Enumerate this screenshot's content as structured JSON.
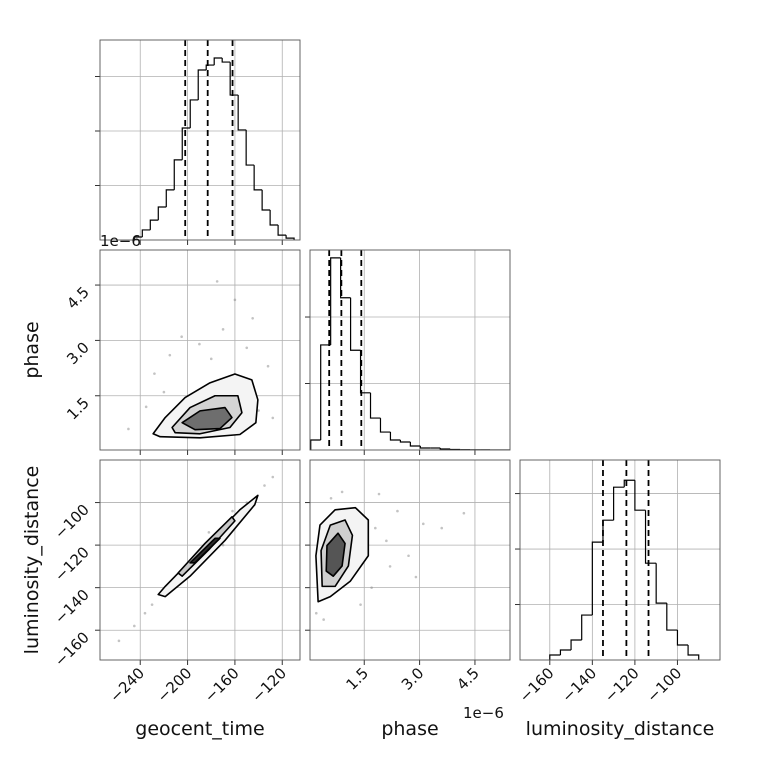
{
  "chart_data": {
    "type": "corner",
    "offset_text": "1e−6",
    "axes": [
      {
        "name": "geocent_time",
        "lim": [
          -274,
          -105
        ],
        "ticks": [
          {
            "value": -240,
            "label": "−240"
          },
          {
            "value": -200,
            "label": "−200"
          },
          {
            "value": -160,
            "label": "−160"
          },
          {
            "value": -120,
            "label": "−120"
          }
        ]
      },
      {
        "name": "phase",
        "lim": [
          0.03,
          5.45
        ],
        "ticks": [
          1.5,
          {
            "value": 3,
            "label": "3.0"
          },
          4.5
        ]
      },
      {
        "name": "luminosity_distance",
        "lim": [
          -174,
          -80
        ],
        "ticks": [
          {
            "value": -160,
            "label": "−160"
          },
          {
            "value": -140,
            "label": "−140"
          },
          {
            "value": -120,
            "label": "−120"
          },
          {
            "value": -100,
            "label": "−100"
          }
        ]
      }
    ],
    "histograms": [
      {
        "axis": 0,
        "bins": [
          -245,
          -238.25,
          -231.5,
          -224.75,
          -218,
          -211.25,
          -204.5,
          -197.75,
          -191,
          -184.25,
          -177.5,
          -170.75,
          -164,
          -157.25,
          -150.5,
          -143.75,
          -137,
          -130.25,
          -123.5,
          -116.75,
          -110
        ],
        "values": [
          11,
          37,
          73,
          121,
          184,
          294,
          411,
          514,
          624,
          642,
          668,
          653,
          532,
          404,
          275,
          184,
          110,
          55,
          18,
          7
        ],
        "ylim": [
          0,
          734
        ],
        "yticks": [
          200,
          400,
          600
        ],
        "quantiles": [
          -202,
          -183,
          -162
        ]
      },
      {
        "axis": 1,
        "bins": [
          0.05,
          0.32,
          0.59,
          0.86,
          1.13,
          1.4,
          1.67,
          1.94,
          2.21,
          2.48,
          2.75,
          3.02,
          3.29,
          3.56,
          3.83,
          4.1,
          4.37,
          4.64,
          4.91,
          5.18,
          5.45
        ],
        "values": [
          150,
          1580,
          2890,
          2290,
          1500,
          860,
          480,
          270,
          150,
          120,
          60,
          30,
          30,
          15,
          8,
          5,
          3,
          2,
          1,
          1
        ],
        "ylim": [
          0,
          3008
        ],
        "yticks": [
          1000,
          2000
        ],
        "quantiles": [
          0.55,
          0.88,
          1.42
        ]
      },
      {
        "axis": 2,
        "bins": [
          -160,
          -155,
          -150,
          -145,
          -140,
          -135,
          -130,
          -125,
          -120,
          -115,
          -110,
          -105,
          -100,
          -95,
          -90
        ],
        "values": [
          18,
          36,
          72,
          162,
          425,
          504,
          623,
          648,
          540,
          349,
          205,
          108,
          54,
          18
        ],
        "ylim": [
          0,
          721
        ],
        "yticks": [
          200,
          400,
          600
        ],
        "quantiles": [
          -135,
          -124,
          -113.6
        ]
      }
    ],
    "pairs": [
      {
        "x_axis": 0,
        "y_axis": 1,
        "samples": {
          "x": [
            -250,
            -235,
            -228,
            -215,
            -150,
            -140,
            -132,
            -128,
            -190,
            -170,
            -160,
            -205,
            -180,
            -145,
            -220,
            -175
          ],
          "y": [
            0.6,
            1.2,
            2.1,
            2.6,
            2.8,
            1.1,
            2.3,
            0.9,
            2.9,
            3.3,
            4.1,
            3.1,
            2.5,
            3.6,
            1.6,
            4.6
          ]
        },
        "contours": [
          {
            "color": "#f4f4f4",
            "x": [
              -229.1,
              -218.9,
              -202.1,
              -181.1,
              -160,
              -145.7,
              -140.6,
              -142.3,
              -155.8,
              -189.5,
              -223.2
            ],
            "y": [
              0.47,
              0.91,
              1.45,
              1.85,
              2.09,
              1.93,
              1.39,
              0.77,
              0.45,
              0.36,
              0.39
            ]
          },
          {
            "color": "#d4d4d4",
            "x": [
              -213.1,
              -197.9,
              -176.8,
              -157.5,
              -154.1,
              -164.2,
              -189.5,
              -210.5
            ],
            "y": [
              0.64,
              1.18,
              1.5,
              1.5,
              1.04,
              0.64,
              0.47,
              0.5
            ]
          },
          {
            "color": "#6e6e6e",
            "x": [
              -204.6,
              -189.5,
              -168.4,
              -162.5,
              -172.6,
              -193.7
            ],
            "y": [
              0.77,
              1.09,
              1.18,
              0.91,
              0.61,
              0.58
            ]
          }
        ]
      },
      {
        "x_axis": 0,
        "y_axis": 2,
        "samples": {
          "x": [
            -258,
            -245,
            -236,
            -230,
            -150,
            -135,
            -128,
            -170,
            -200,
            -182,
            -162,
            -215
          ],
          "y": [
            -165,
            -158,
            -152,
            -148,
            -100,
            -92,
            -88,
            -120,
            -130,
            -114,
            -104,
            -138
          ]
        },
        "contours": [
          {
            "color": "#f4f4f4",
            "x": [
              -224.8,
              -218.9,
              -189.5,
              -155.8,
              -140.6,
              -143.2,
              -168.4,
              -197.9,
              -218.9
            ],
            "y": [
              -143.2,
              -139.4,
              -122.6,
              -103.4,
              -96.6,
              -101,
              -117.8,
              -134.6,
              -144.2
            ]
          },
          {
            "color": "#c8c8c8",
            "x": [
              -208,
              -185.3,
              -162.5,
              -160,
              -181.1,
              -204.6
            ],
            "y": [
              -133.1,
              -119.2,
              -106.7,
              -108.6,
              -121.6,
              -134.6
            ]
          },
          {
            "color": "#2a2a2a",
            "x": [
              -197.9,
              -176.8,
              -172.6,
              -193.7
            ],
            "y": [
              -128.3,
              -116.8,
              -116.8,
              -128.3
            ]
          }
        ]
      },
      {
        "x_axis": 1,
        "y_axis": 2,
        "samples": {
          "x": [
            0.2,
            0.4,
            1.8,
            2.1,
            2.4,
            2.7,
            3.1,
            1.9,
            2.2,
            0.9,
            1.4,
            3.6,
            4.2,
            2.9,
            0.6,
            1.7
          ],
          "y": [
            -152,
            -155,
            -112,
            -118,
            -104,
            -125,
            -110,
            -96,
            -130,
            -95,
            -148,
            -112,
            -105,
            -135,
            -98,
            -140
          ]
        },
        "contours": [
          {
            "color": "#f4f4f4",
            "x": [
              0.25,
              0.19,
              0.3,
              0.71,
              1.26,
              1.61,
              1.61,
              1.12,
              0.58
            ],
            "y": [
              -146.6,
              -125,
              -110.6,
              -103.4,
              -102.4,
              -108.2,
              -125,
              -137,
              -144.2
            ]
          },
          {
            "color": "#cfcfcf",
            "x": [
              0.36,
              0.33,
              0.58,
              0.98,
              1.18,
              1.07,
              0.71
            ],
            "y": [
              -139.4,
              -122.6,
              -110.6,
              -108.2,
              -115.4,
              -129.8,
              -139.4
            ]
          },
          {
            "color": "#555555",
            "x": [
              0.47,
              0.49,
              0.79,
              0.98,
              0.9,
              0.66
            ],
            "y": [
              -132.2,
              -120.2,
              -114.4,
              -119.2,
              -129.8,
              -134.6
            ]
          }
        ]
      }
    ],
    "grid": true
  }
}
